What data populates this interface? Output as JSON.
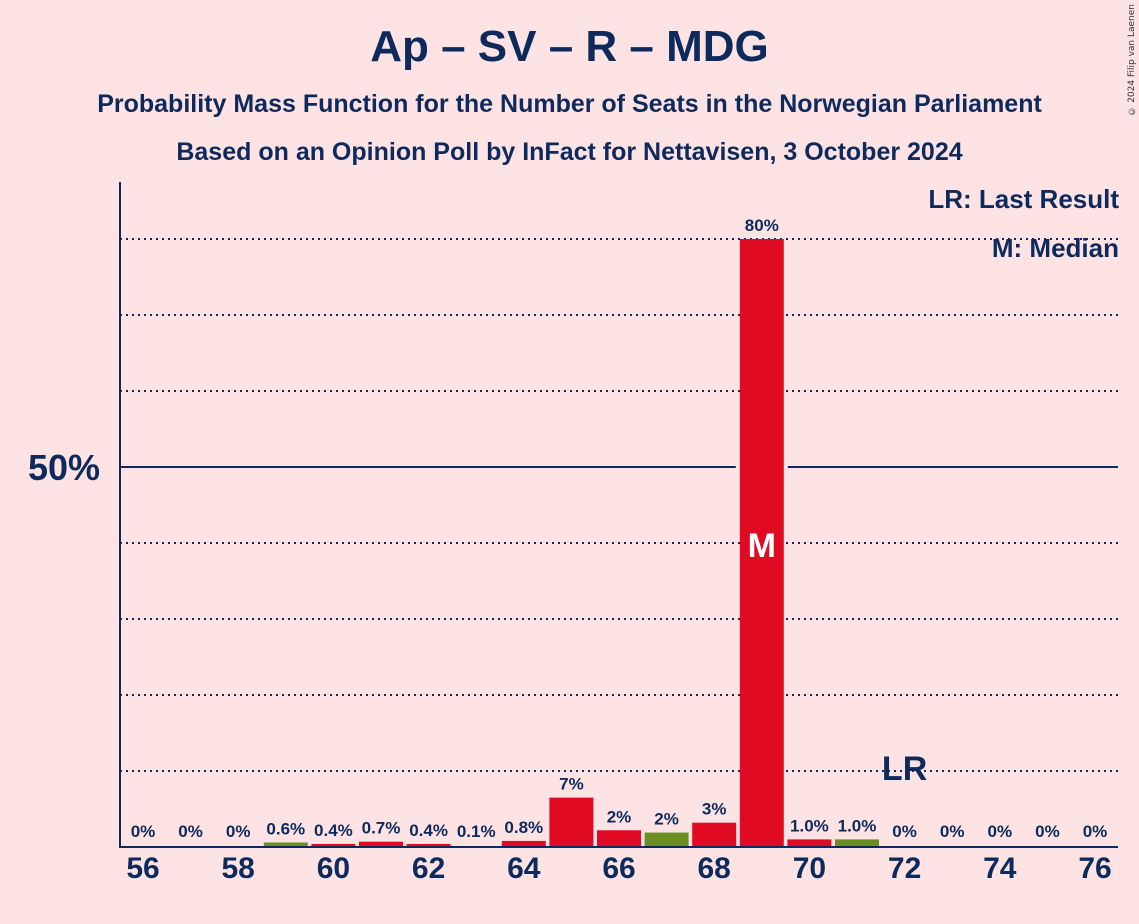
{
  "title": "Ap – SV – R – MDG",
  "subtitle1": "Probability Mass Function for the Number of Seats in the Norwegian Parliament",
  "subtitle2": "Based on an Opinion Poll by InFact for Nettavisen, 3 October 2024",
  "copyright": "© 2024 Filip van Laenen",
  "legend": {
    "lr": "LR: Last Result",
    "m": "M: Median"
  },
  "colors": {
    "background": "#FDE3E4",
    "text": "#0E2A5C",
    "bar_red": "#E00A22",
    "bar_green": "#6B8E23"
  },
  "chart_data": {
    "type": "bar",
    "x": [
      56,
      57,
      58,
      59,
      60,
      61,
      62,
      63,
      64,
      65,
      66,
      67,
      68,
      69,
      70,
      71,
      72,
      73,
      74,
      75,
      76
    ],
    "values": [
      0,
      0,
      0,
      0.6,
      0.4,
      0.7,
      0.4,
      0.1,
      0.8,
      6.5,
      2.2,
      1.9,
      3.2,
      80,
      1.0,
      1.0,
      0,
      0,
      0,
      0,
      0
    ],
    "labels": [
      "0%",
      "0%",
      "0%",
      "0.6%",
      "0.4%",
      "0.7%",
      "0.4%",
      "0.1%",
      "0.8%",
      "7%",
      "2%",
      "2%",
      "3%",
      "80%",
      "1.0%",
      "1.0%",
      "0%",
      "0%",
      "0%",
      "0%",
      "0%"
    ],
    "bar_colors": [
      "red",
      "red",
      "red",
      "green",
      "red",
      "red",
      "red",
      "red",
      "red",
      "red",
      "red",
      "green",
      "red",
      "red",
      "red",
      "green",
      "red",
      "red",
      "red",
      "red",
      "red"
    ],
    "xticks": [
      56,
      58,
      60,
      62,
      64,
      66,
      68,
      70,
      72,
      74,
      76
    ],
    "ylim": [
      0,
      87
    ],
    "ytick_label": "50%",
    "ytick_value": 50,
    "gridlines": [
      10,
      20,
      30,
      40,
      60,
      70,
      80
    ],
    "median_seat": 69,
    "median_label": "M",
    "last_result_seat": 72,
    "last_result_label": "LR"
  }
}
